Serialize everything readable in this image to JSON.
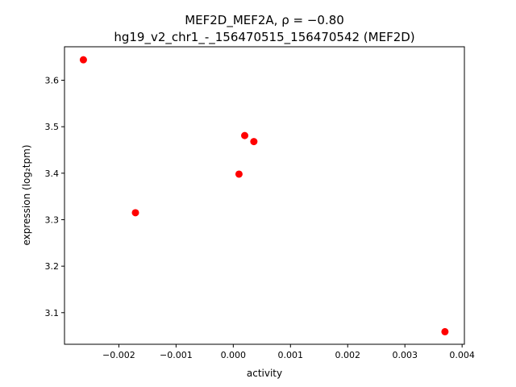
{
  "chart_data": {
    "type": "scatter",
    "title_line1": "MEF2D_MEF2A, ρ = −0.80",
    "title_line2": "hg19_v2_chr1_-_156470515_156470542 (MEF2D)",
    "xlabel": "activity",
    "ylabel": "expression (log₂tpm)",
    "xlim": [
      -0.00295,
      0.00404
    ],
    "ylim": [
      3.032,
      3.672
    ],
    "xticks": [
      {
        "value": -0.002,
        "label": "−0.002"
      },
      {
        "value": -0.001,
        "label": "−0.001"
      },
      {
        "value": 0.0,
        "label": "0.000"
      },
      {
        "value": 0.001,
        "label": "0.001"
      },
      {
        "value": 0.002,
        "label": "0.002"
      },
      {
        "value": 0.003,
        "label": "0.003"
      },
      {
        "value": 0.004,
        "label": "0.004"
      }
    ],
    "yticks": [
      {
        "value": 3.1,
        "label": "3.1"
      },
      {
        "value": 3.2,
        "label": "3.2"
      },
      {
        "value": 3.3,
        "label": "3.3"
      },
      {
        "value": 3.4,
        "label": "3.4"
      },
      {
        "value": 3.5,
        "label": "3.5"
      },
      {
        "value": 3.6,
        "label": "3.6"
      }
    ],
    "points": [
      {
        "x": -0.00262,
        "y": 3.644
      },
      {
        "x": -0.00171,
        "y": 3.315
      },
      {
        "x": 0.0001,
        "y": 3.398
      },
      {
        "x": 0.0002,
        "y": 3.481
      },
      {
        "x": 0.00036,
        "y": 3.468
      },
      {
        "x": 0.0037,
        "y": 3.059
      }
    ],
    "point_color": "#ff0000",
    "grid": false,
    "legend": "none"
  }
}
